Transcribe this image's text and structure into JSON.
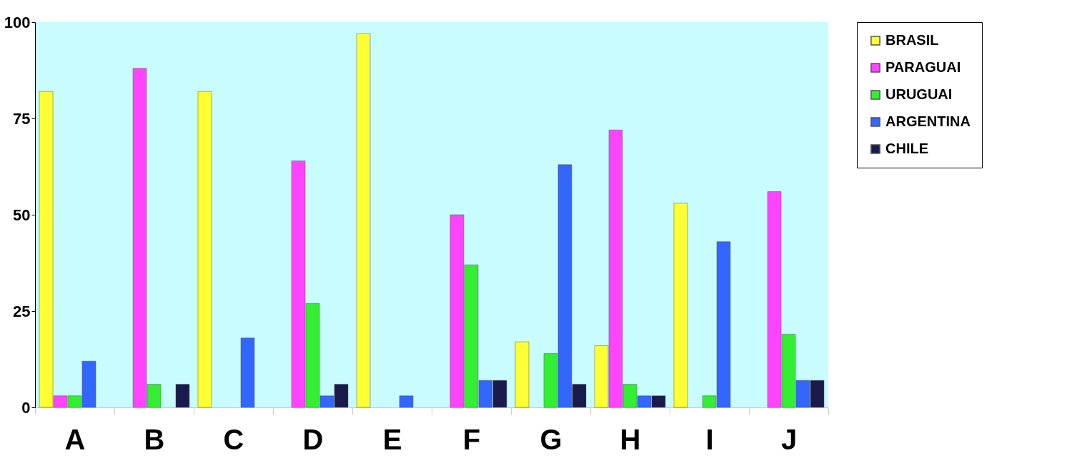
{
  "chart_data": {
    "type": "bar",
    "categories": [
      "A",
      "B",
      "C",
      "D",
      "E",
      "F",
      "G",
      "H",
      "I",
      "J"
    ],
    "series": [
      {
        "name": "BRASIL",
        "color": "#ffff33",
        "values": [
          82,
          null,
          82,
          null,
          97,
          null,
          17,
          16,
          53,
          null
        ]
      },
      {
        "name": "PARAGUAI",
        "color": "#ff44ff",
        "values": [
          3,
          88,
          null,
          64,
          null,
          50,
          null,
          72,
          null,
          56
        ]
      },
      {
        "name": "URUGUAI",
        "color": "#33ee33",
        "values": [
          3,
          6,
          null,
          27,
          null,
          37,
          14,
          6,
          3,
          19
        ]
      },
      {
        "name": "ARGENTINA",
        "color": "#3366ff",
        "values": [
          12,
          null,
          18,
          3,
          3,
          7,
          63,
          3,
          43,
          7
        ]
      },
      {
        "name": "CHILE",
        "color": "#1a1a4d",
        "values": [
          null,
          6,
          null,
          6,
          null,
          7,
          6,
          3,
          null,
          7
        ]
      }
    ],
    "ylim": [
      0,
      100
    ],
    "yticks": [
      0,
      25,
      50,
      75,
      100
    ],
    "grid": false,
    "legend": "right"
  }
}
